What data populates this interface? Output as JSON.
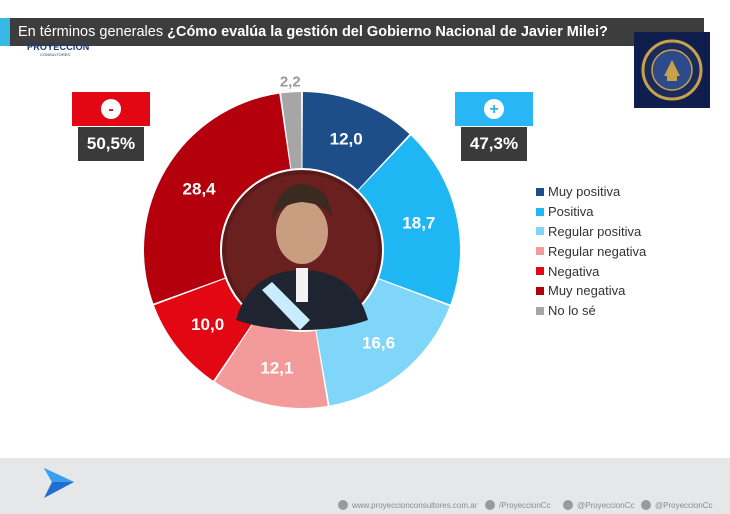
{
  "title": {
    "prefix": "En términos generales ",
    "question": "¿Cómo evalúa la gestión del Gobierno Nacional de Javier Milei?"
  },
  "negative_summary": {
    "symbol": "-",
    "value": "50,5%",
    "color": "#e30613"
  },
  "positive_summary": {
    "symbol": "+",
    "value": "47,3%",
    "color": "#29b6f6"
  },
  "chart_data": {
    "type": "pie",
    "categories": [
      "Muy positiva",
      "Positiva",
      "Regular positiva",
      "Regular negativa",
      "Negativa",
      "Muy negativa",
      "No lo sé"
    ],
    "values": [
      12.0,
      18.7,
      16.6,
      12.1,
      10.0,
      28.4,
      2.2
    ],
    "labels": [
      "12,0",
      "18,7",
      "16,6",
      "12,1",
      "10,0",
      "28,4",
      "2,2"
    ],
    "colors": [
      "#1d4e8a",
      "#1fb6f4",
      "#7fd6f9",
      "#f39a9a",
      "#e30613",
      "#b3000c",
      "#a6a6a6"
    ],
    "donut": true,
    "legend_position": "right"
  },
  "legend": {
    "items": [
      {
        "label": "Muy positiva",
        "color": "#1d4e8a"
      },
      {
        "label": "Positiva",
        "color": "#1fb6f4"
      },
      {
        "label": "Regular positiva",
        "color": "#7fd6f9"
      },
      {
        "label": "Regular negativa",
        "color": "#f39a9a"
      },
      {
        "label": "Negativa",
        "color": "#e30613"
      },
      {
        "label": "Muy negativa",
        "color": "#b3000c"
      },
      {
        "label": "No lo sé",
        "color": "#a6a6a6"
      }
    ]
  },
  "footer": {
    "brand": "PROYECCIÓN",
    "brand_sub": "CONSULTORES",
    "web": "www.proyeccionconsultores.com.ar",
    "facebook": "/ProyeccionCc",
    "twitter": "@ProyeccionCc",
    "instagram": "@ProyeccionCc"
  }
}
